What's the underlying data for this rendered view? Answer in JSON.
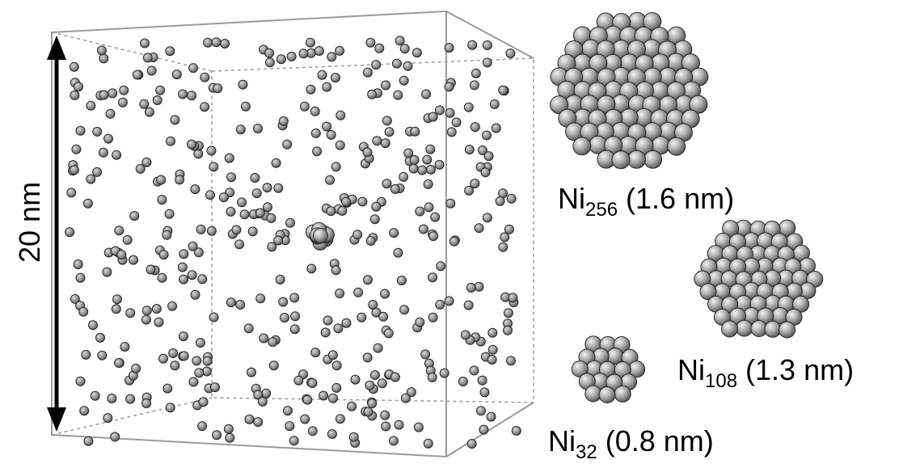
{
  "scale_bar": {
    "label": "20 nm"
  },
  "clusters": [
    {
      "id": "ni256",
      "element": "Ni",
      "size_subscript": "256",
      "diameter_text": " (1.6 nm)",
      "atom_count": 256
    },
    {
      "id": "ni108",
      "element": "Ni",
      "size_subscript": "108",
      "diameter_text": " (1.3 nm)",
      "atom_count": 108
    },
    {
      "id": "ni32",
      "element": "Ni",
      "size_subscript": "32",
      "diameter_text": " (0.8 nm)",
      "atom_count": 32
    }
  ],
  "colors": {
    "atom_fill": "#8a8a8a",
    "atom_highlight": "#e6e6e6",
    "atom_edge": "#2a2a2a",
    "box_edge": "#9a9a9a"
  }
}
